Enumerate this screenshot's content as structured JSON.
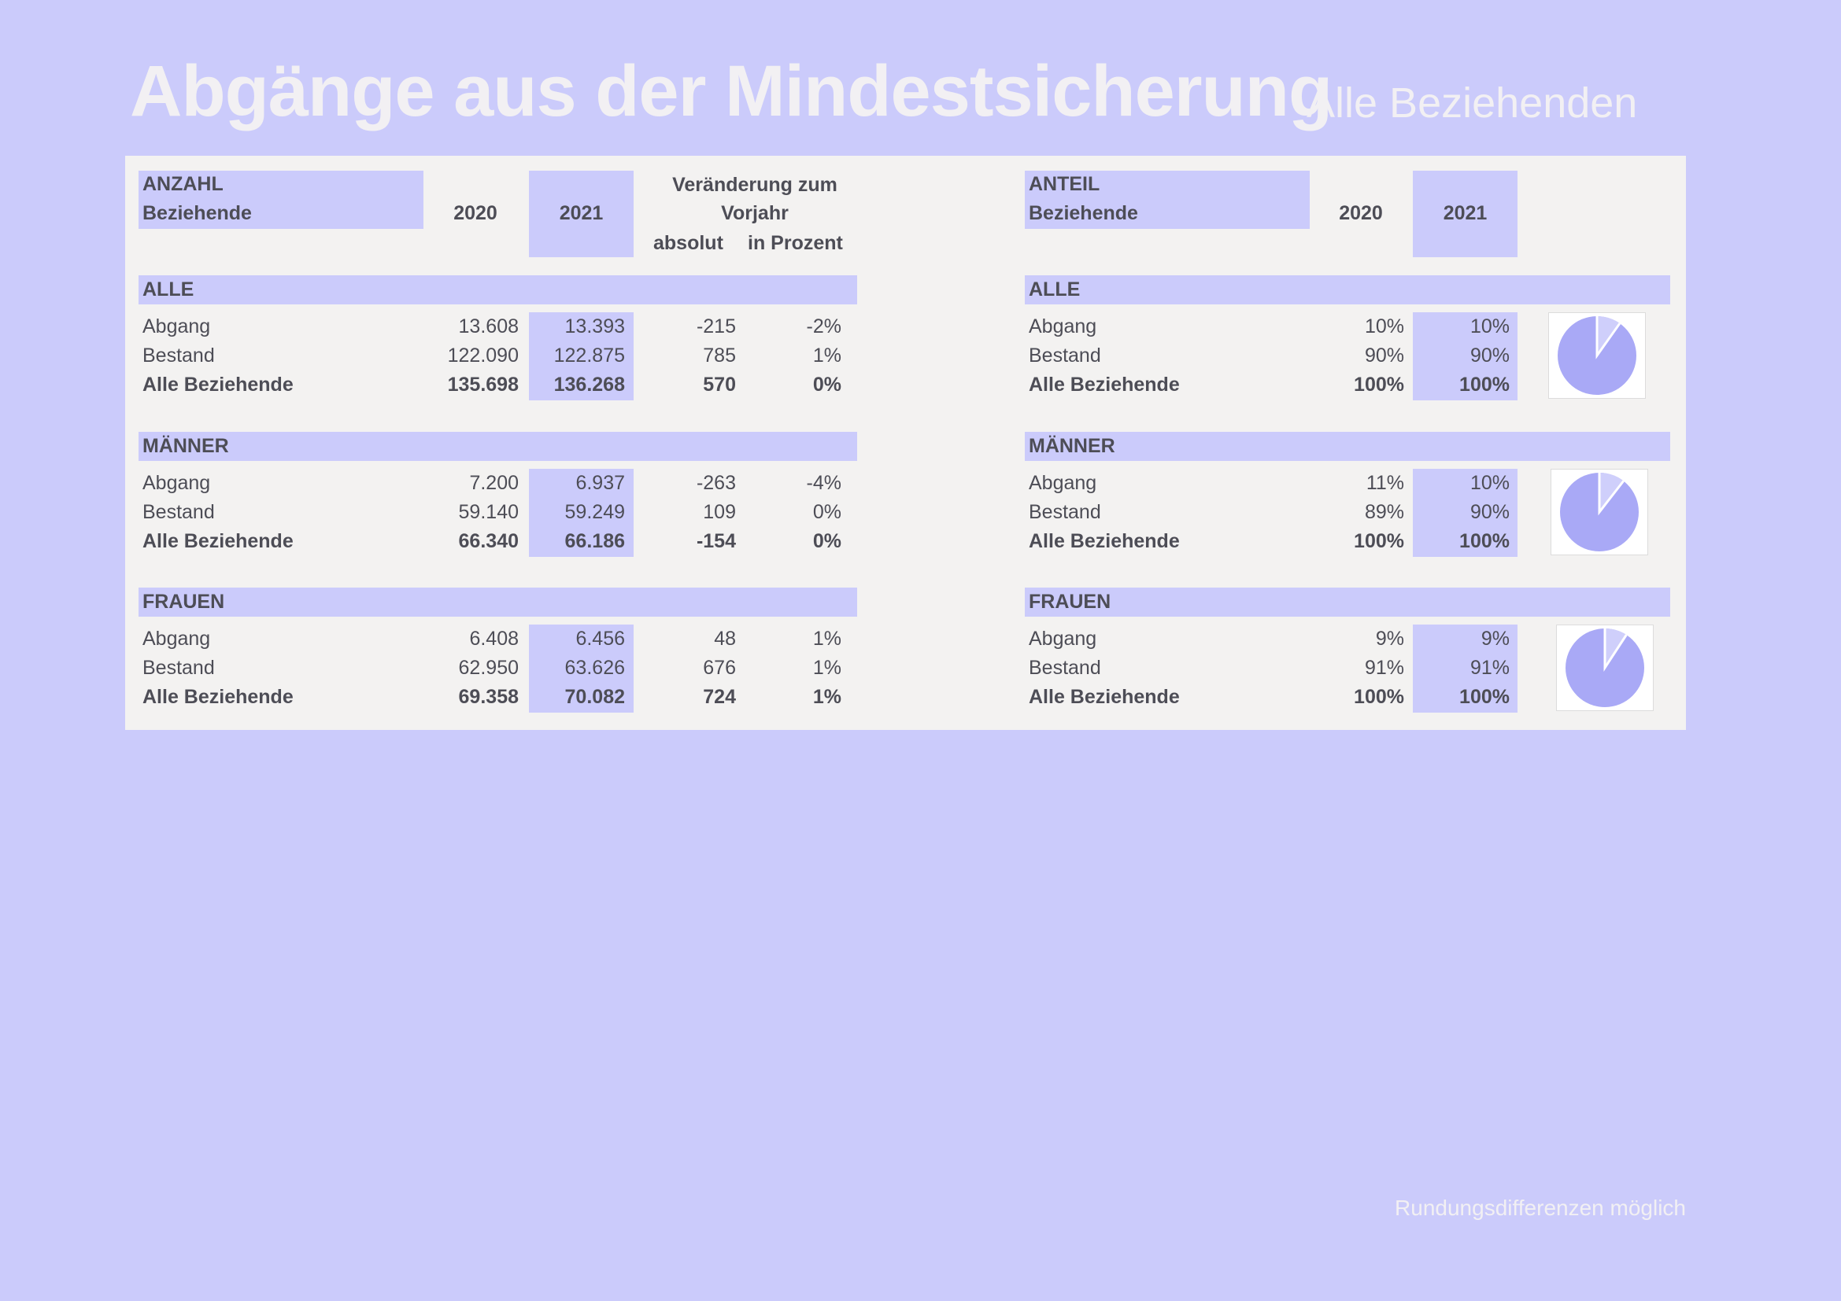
{
  "title": "Abgänge aus der Mindestsicherung",
  "subtitle": "Alle Beziehenden",
  "footnote": "Rundungsdifferenzen möglich",
  "left": {
    "head_line1": "ANZAHL",
    "head_line2": "Beziehende",
    "col_2020": "2020",
    "col_2021": "2021",
    "change_line1": "Veränderung zum",
    "change_line2": "Vorjahr",
    "change_abs": "absolut",
    "change_pct": "in Prozent",
    "groups": [
      {
        "label": "ALLE",
        "rows": [
          {
            "label": "Abgang",
            "v2020": "13.608",
            "v2021": "13.393",
            "abs": "-215",
            "pct": "-2%"
          },
          {
            "label": "Bestand",
            "v2020": "122.090",
            "v2021": "122.875",
            "abs": "785",
            "pct": "1%"
          },
          {
            "label": "Alle Beziehende",
            "v2020": "135.698",
            "v2021": "136.268",
            "abs": "570",
            "pct": "0%"
          }
        ]
      },
      {
        "label": "MÄNNER",
        "rows": [
          {
            "label": "Abgang",
            "v2020": "7.200",
            "v2021": "6.937",
            "abs": "-263",
            "pct": "-4%"
          },
          {
            "label": "Bestand",
            "v2020": "59.140",
            "v2021": "59.249",
            "abs": "109",
            "pct": "0%"
          },
          {
            "label": "Alle Beziehende",
            "v2020": "66.340",
            "v2021": "66.186",
            "abs": "-154",
            "pct": "0%"
          }
        ]
      },
      {
        "label": "FRAUEN",
        "rows": [
          {
            "label": "Abgang",
            "v2020": "6.408",
            "v2021": "6.456",
            "abs": "48",
            "pct": "1%"
          },
          {
            "label": "Bestand",
            "v2020": "62.950",
            "v2021": "63.626",
            "abs": "676",
            "pct": "1%"
          },
          {
            "label": "Alle Beziehende",
            "v2020": "69.358",
            "v2021": "70.082",
            "abs": "724",
            "pct": "1%"
          }
        ]
      }
    ]
  },
  "right": {
    "head_line1": "ANTEIL",
    "head_line2": "Beziehende",
    "col_2020": "2020",
    "col_2021": "2021",
    "groups": [
      {
        "label": "ALLE",
        "pie_abgang_share": 0.098,
        "rows": [
          {
            "label": "Abgang",
            "v2020": "10%",
            "v2021": "10%"
          },
          {
            "label": "Bestand",
            "v2020": "90%",
            "v2021": "90%"
          },
          {
            "label": "Alle Beziehende",
            "v2020": "100%",
            "v2021": "100%"
          }
        ]
      },
      {
        "label": "MÄNNER",
        "pie_abgang_share": 0.105,
        "rows": [
          {
            "label": "Abgang",
            "v2020": "11%",
            "v2021": "10%"
          },
          {
            "label": "Bestand",
            "v2020": "89%",
            "v2021": "90%"
          },
          {
            "label": "Alle Beziehende",
            "v2020": "100%",
            "v2021": "100%"
          }
        ]
      },
      {
        "label": "FRAUEN",
        "pie_abgang_share": 0.092,
        "rows": [
          {
            "label": "Abgang",
            "v2020": "9%",
            "v2021": "9%"
          },
          {
            "label": "Bestand",
            "v2020": "91%",
            "v2021": "91%"
          },
          {
            "label": "Alle Beziehende",
            "v2020": "100%",
            "v2021": "100%"
          }
        ]
      }
    ]
  },
  "colors": {
    "background": "#cbcbfb",
    "panel": "#f3f2f1",
    "highlight": "#cbcbfb",
    "pie_main": "#a9a9f6",
    "pie_slice": "#cfcffb",
    "text": "#4d4d56",
    "title": "#f2f0f3"
  }
}
